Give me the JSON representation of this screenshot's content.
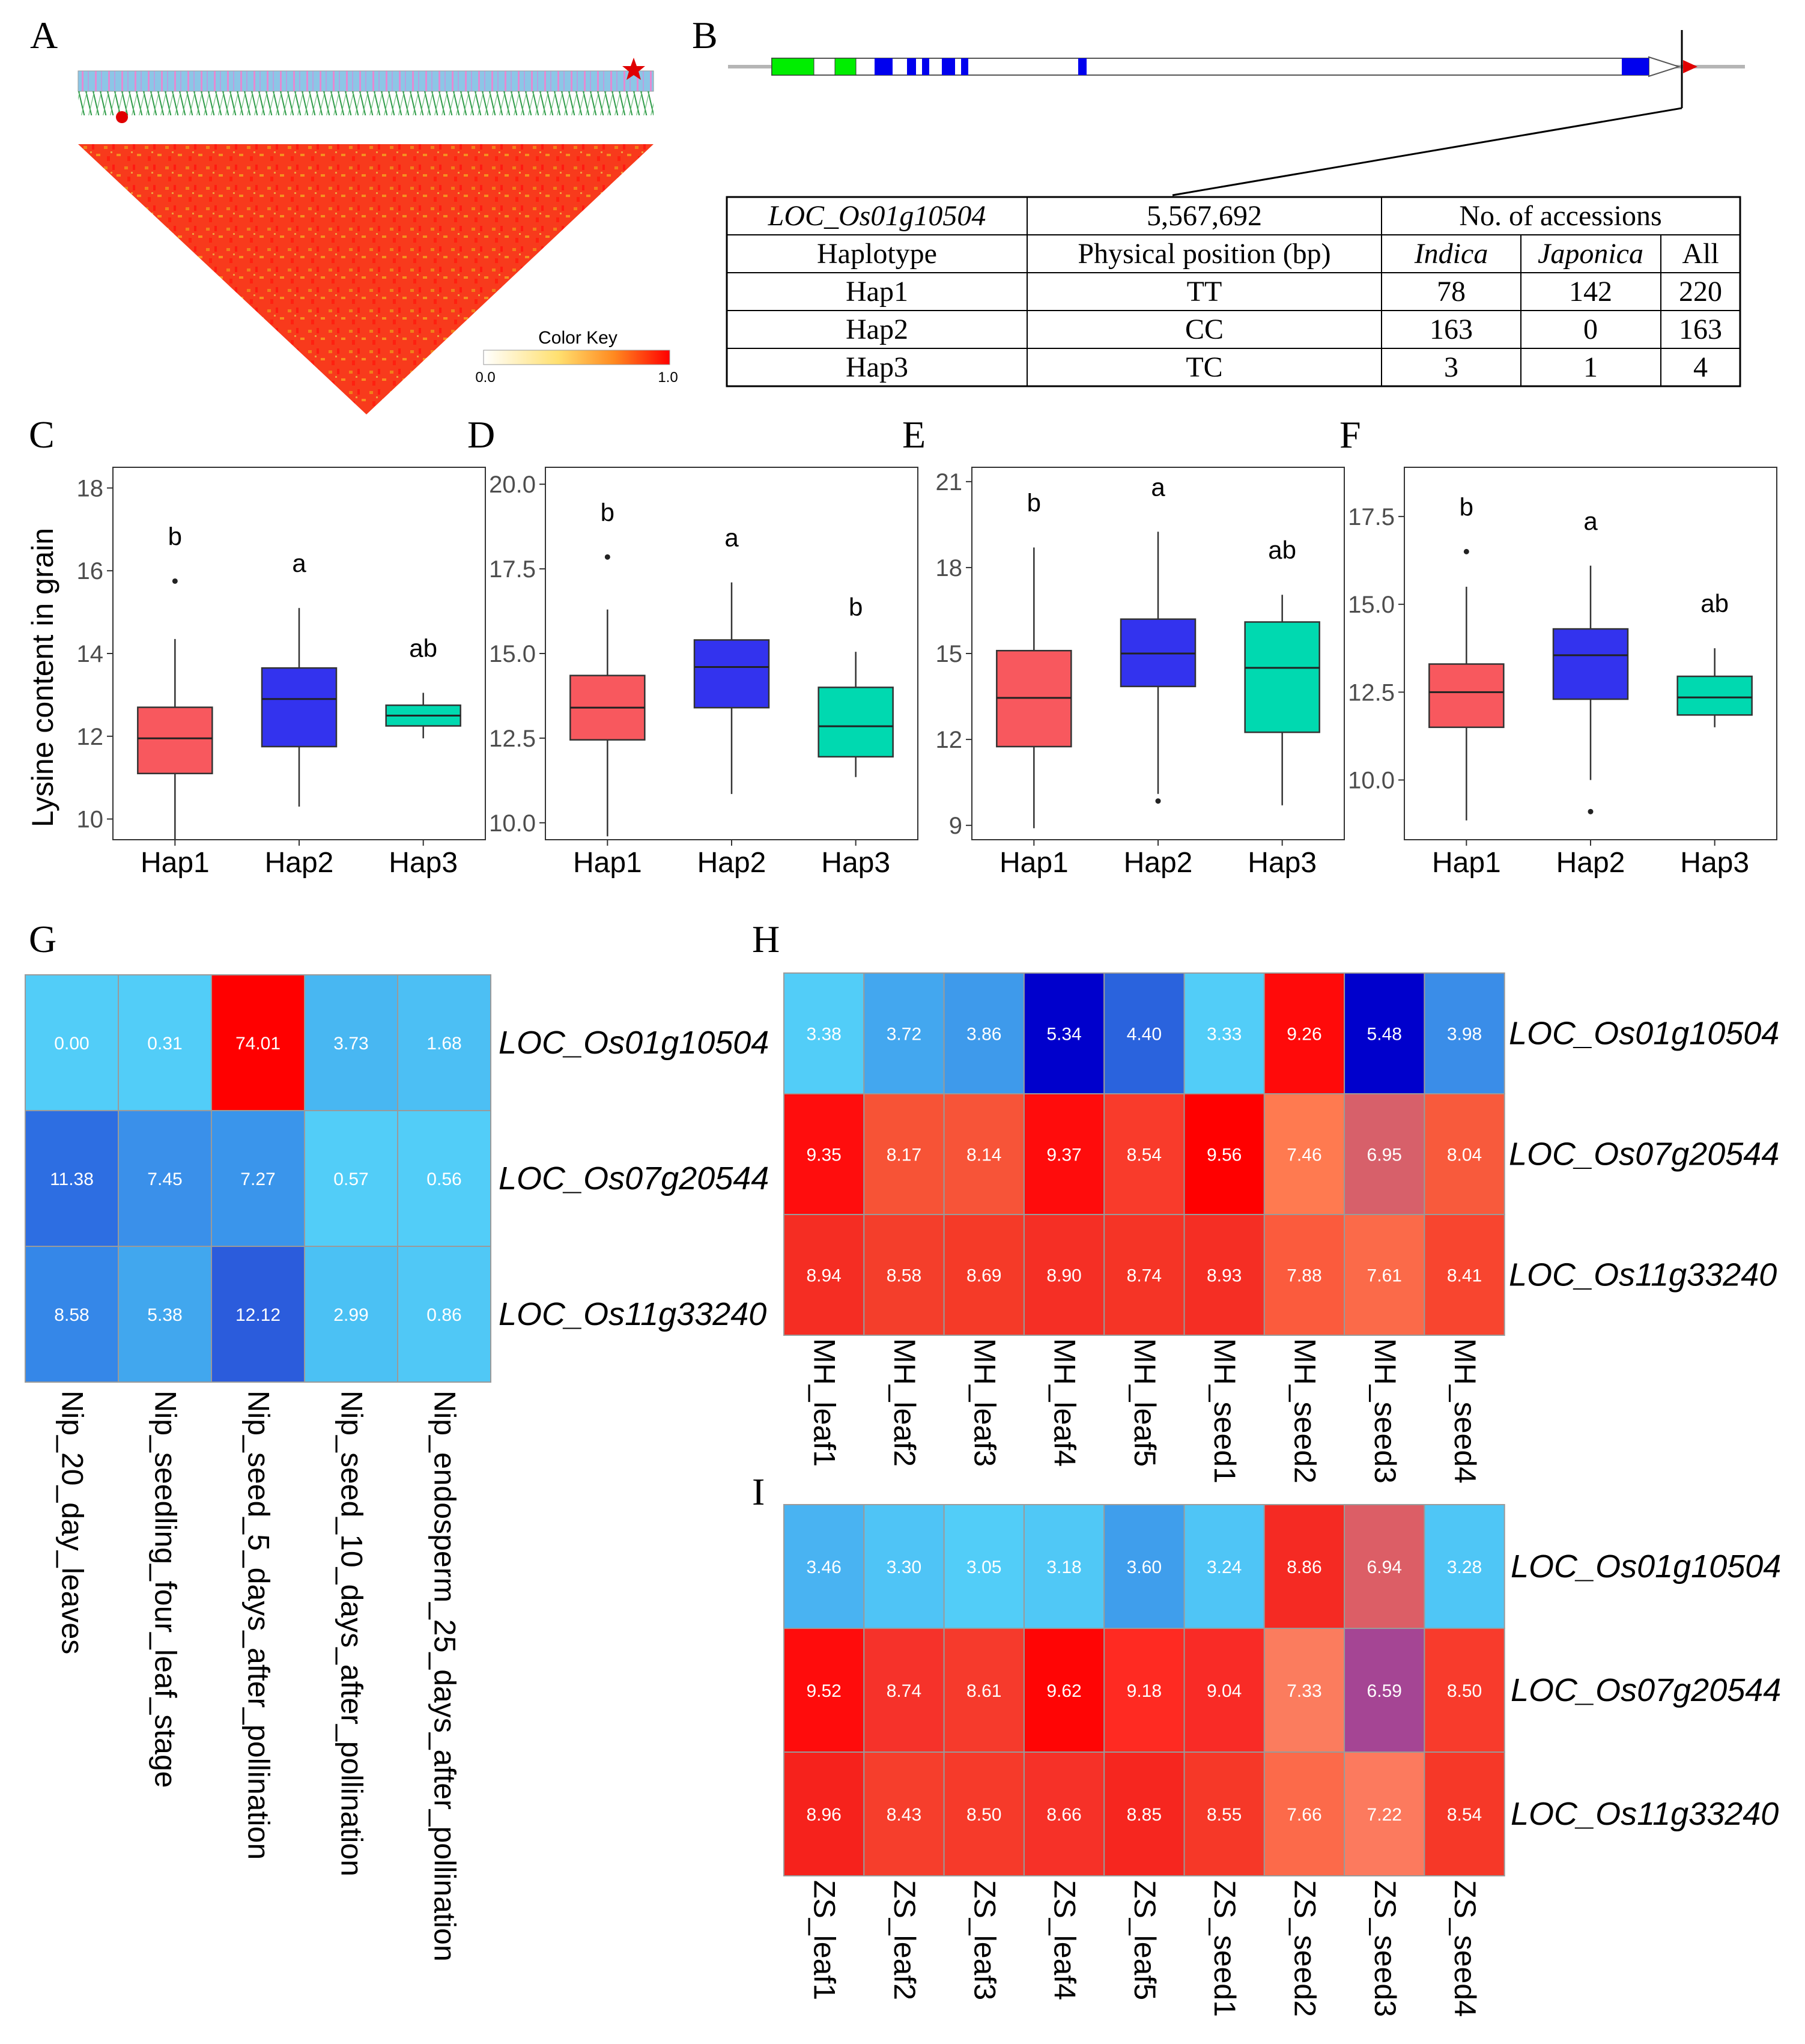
{
  "panels": {
    "A": "A",
    "B": "B",
    "C": "C",
    "D": "D",
    "E": "E",
    "F": "F",
    "G": "G",
    "H": "H",
    "I": "I"
  },
  "ld": {
    "color_key_title": "Color Key",
    "color_key_min": "0.0",
    "color_key_max": "1.0"
  },
  "gene_table": {
    "gene": "LOC_Os01g10504",
    "position": "5,567,692",
    "accessions_header": "No. of accessions",
    "col_haplotype": "Haplotype",
    "col_position": "Physical position (bp)",
    "col_indica": "Indica",
    "col_japonica": "Japonica",
    "col_all": "All",
    "rows": [
      {
        "hap": "Hap1",
        "geno": "TT",
        "indica": "78",
        "japonica": "142",
        "all": "220"
      },
      {
        "hap": "Hap2",
        "geno": "CC",
        "indica": "163",
        "japonica": "0",
        "all": "163"
      },
      {
        "hap": "Hap3",
        "geno": "TC",
        "indica": "3",
        "japonica": "1",
        "all": "4"
      }
    ]
  },
  "boxplot_ylabel": "Lysine content in grain",
  "chart_data": [
    {
      "id": "C",
      "type": "box",
      "categories": [
        "Hap1",
        "Hap2",
        "Hap3"
      ],
      "colors": [
        "#f8585e",
        "#3333ee",
        "#00d9b0"
      ],
      "ylim": [
        9.5,
        18.5
      ],
      "yticks": [
        10,
        12,
        14,
        16,
        18
      ],
      "ytick_labels": [
        "10",
        "12",
        "14",
        "16",
        "18"
      ],
      "ylabel": "Lysine content in grain",
      "boxes": [
        {
          "min": 9.5,
          "q1": 11.1,
          "median": 11.95,
          "q3": 12.7,
          "max": 14.35,
          "outliers": [
            15.75
          ]
        },
        {
          "min": 10.3,
          "q1": 11.75,
          "median": 12.9,
          "q3": 13.65,
          "max": 15.1,
          "outliers": []
        },
        {
          "min": 11.95,
          "q1": 12.25,
          "median": 12.5,
          "q3": 12.75,
          "max": 13.05,
          "outliers": []
        }
      ],
      "letters": [
        "b",
        "a",
        "ab"
      ]
    },
    {
      "id": "D",
      "type": "box",
      "categories": [
        "Hap1",
        "Hap2",
        "Hap3"
      ],
      "colors": [
        "#f8585e",
        "#3333ee",
        "#00d9b0"
      ],
      "ylim": [
        9.5,
        20.5
      ],
      "yticks": [
        10,
        12.5,
        15,
        17.5,
        20
      ],
      "ytick_labels": [
        "10.0",
        "12.5",
        "15.0",
        "17.5",
        "20.0"
      ],
      "ylabel": "",
      "boxes": [
        {
          "min": 9.6,
          "q1": 12.45,
          "median": 13.4,
          "q3": 14.35,
          "max": 16.3,
          "outliers": [
            17.85
          ]
        },
        {
          "min": 10.85,
          "q1": 13.4,
          "median": 14.6,
          "q3": 15.4,
          "max": 17.1,
          "outliers": []
        },
        {
          "min": 11.35,
          "q1": 11.95,
          "median": 12.85,
          "q3": 14.0,
          "max": 15.05,
          "outliers": []
        }
      ],
      "letters": [
        "b",
        "a",
        "b"
      ]
    },
    {
      "id": "E",
      "type": "box",
      "categories": [
        "Hap1",
        "Hap2",
        "Hap3"
      ],
      "colors": [
        "#f8585e",
        "#3333ee",
        "#00d9b0"
      ],
      "ylim": [
        8.5,
        21.5
      ],
      "yticks": [
        9,
        12,
        15,
        18,
        21
      ],
      "ytick_labels": [
        "9",
        "12",
        "15",
        "18",
        "21"
      ],
      "ylabel": "",
      "boxes": [
        {
          "min": 8.9,
          "q1": 11.75,
          "median": 13.45,
          "q3": 15.1,
          "max": 18.7,
          "outliers": []
        },
        {
          "min": 10.1,
          "q1": 13.85,
          "median": 15.0,
          "q3": 16.2,
          "max": 19.25,
          "outliers": [
            9.85
          ]
        },
        {
          "min": 9.7,
          "q1": 12.25,
          "median": 14.5,
          "q3": 16.1,
          "max": 17.05,
          "outliers": []
        }
      ],
      "letters": [
        "b",
        "a",
        "ab"
      ]
    },
    {
      "id": "F",
      "type": "box",
      "categories": [
        "Hap1",
        "Hap2",
        "Hap3"
      ],
      "colors": [
        "#f8585e",
        "#3333ee",
        "#00d9b0"
      ],
      "ylim": [
        8.3,
        18.9
      ],
      "yticks": [
        10,
        12.5,
        15,
        17.5
      ],
      "ytick_labels": [
        "10.0",
        "12.5",
        "15.0",
        "17.5"
      ],
      "ylabel": "",
      "boxes": [
        {
          "min": 8.85,
          "q1": 11.5,
          "median": 12.5,
          "q3": 13.3,
          "max": 15.5,
          "outliers": [
            16.5
          ]
        },
        {
          "min": 10.0,
          "q1": 12.3,
          "median": 13.55,
          "q3": 14.3,
          "max": 16.1,
          "outliers": [
            9.1
          ]
        },
        {
          "min": 11.5,
          "q1": 11.85,
          "median": 12.35,
          "q3": 12.95,
          "max": 13.75,
          "outliers": []
        }
      ],
      "letters": [
        "b",
        "a",
        "ab"
      ]
    },
    {
      "id": "G",
      "type": "heatmap",
      "rows": [
        "LOC_Os01g10504",
        "LOC_Os07g20544",
        "LOC_Os11g33240"
      ],
      "cols": [
        "Nip_20_day_leaves",
        "Nip_seedling_four_leaf_stage",
        "Nip_seed_5_days_after_pollination",
        "Nip_seed_10_days_after_pollination",
        "Nip_endosperm_25_days_after_pollination"
      ],
      "values": [
        [
          "0.00",
          "0.31",
          "74.01",
          "3.73",
          "1.68"
        ],
        [
          "11.38",
          "7.45",
          "7.27",
          "0.57",
          "0.56"
        ],
        [
          "8.58",
          "5.38",
          "12.12",
          "2.99",
          "0.86"
        ]
      ],
      "colors": [
        [
          "#52cdf8",
          "#52cdf8",
          "#ff0000",
          "#48b7f2",
          "#4cbff4"
        ],
        [
          "#2d6ee2",
          "#3a90ea",
          "#3a95eb",
          "#52cdf8",
          "#52cdf8"
        ],
        [
          "#3587e8",
          "#41a7ee",
          "#2b5cdc",
          "#4bc1f4",
          "#50c8f6"
        ]
      ]
    },
    {
      "id": "H",
      "type": "heatmap",
      "rows": [
        "LOC_Os01g10504",
        "LOC_Os07g20544",
        "LOC_Os11g33240"
      ],
      "cols": [
        "MH_leaf1",
        "MH_leaf2",
        "MH_leaf3",
        "MH_leaf4",
        "MH_leaf5",
        "MH_seed1",
        "MH_seed2",
        "MH_seed3",
        "MH_seed4"
      ],
      "values": [
        [
          "3.38",
          "3.72",
          "3.86",
          "5.34",
          "4.40",
          "3.33",
          "9.26",
          "5.48",
          "3.98"
        ],
        [
          "9.35",
          "8.17",
          "8.14",
          "9.37",
          "8.54",
          "9.56",
          "7.46",
          "6.95",
          "8.04"
        ],
        [
          "8.94",
          "8.58",
          "8.69",
          "8.90",
          "8.74",
          "8.93",
          "7.88",
          "7.61",
          "8.41"
        ]
      ],
      "colors": [
        [
          "#52cdf8",
          "#43a7ef",
          "#3e9aeb",
          "#0000cc",
          "#2a63dd",
          "#52cdf8",
          "#ff0a0a",
          "#0000cc",
          "#3a8de8"
        ],
        [
          "#ff0d0d",
          "#f75336",
          "#f75438",
          "#ff0c0c",
          "#f93b2b",
          "#ff0000",
          "#ff7a50",
          "#d7606a",
          "#f85a3c"
        ],
        [
          "#f52d23",
          "#f43e2b",
          "#f53a28",
          "#f52f25",
          "#f53426",
          "#f52e24",
          "#fb5b3d",
          "#fb6a49",
          "#f8452f"
        ]
      ]
    },
    {
      "id": "I",
      "type": "heatmap",
      "rows": [
        "LOC_Os01g10504",
        "LOC_Os07g20544",
        "LOC_Os11g33240"
      ],
      "cols": [
        "ZS_leaf1",
        "ZS_leaf2",
        "ZS_leaf3",
        "ZS_leaf4",
        "ZS_leaf5",
        "ZS_seed1",
        "ZS_seed2",
        "ZS_seed3",
        "ZS_seed4"
      ],
      "values": [
        [
          "3.46",
          "3.30",
          "3.05",
          "3.18",
          "3.60",
          "3.24",
          "8.86",
          "6.94",
          "3.28"
        ],
        [
          "9.52",
          "8.74",
          "8.61",
          "9.62",
          "9.18",
          "9.04",
          "7.33",
          "6.59",
          "8.50"
        ],
        [
          "8.96",
          "8.43",
          "8.50",
          "8.66",
          "8.85",
          "8.55",
          "7.66",
          "7.22",
          "8.54"
        ]
      ],
      "colors": [
        [
          "#49b3f2",
          "#4fc4f6",
          "#52cdf8",
          "#50c8f6",
          "#3f9eec",
          "#4fc5f6",
          "#f52a23",
          "#dc5e66",
          "#4fc6f6"
        ],
        [
          "#ff0c0c",
          "#f6322a",
          "#f63a2c",
          "#ff0505",
          "#ff2a22",
          "#f92b26",
          "#fb7c5e",
          "#a54594",
          "#f83b2c"
        ],
        [
          "#f6221c",
          "#f63e2c",
          "#f63a2a",
          "#f63128",
          "#f6261f",
          "#f63828",
          "#fc6a4a",
          "#fc7a5e",
          "#f63828"
        ]
      ]
    }
  ]
}
